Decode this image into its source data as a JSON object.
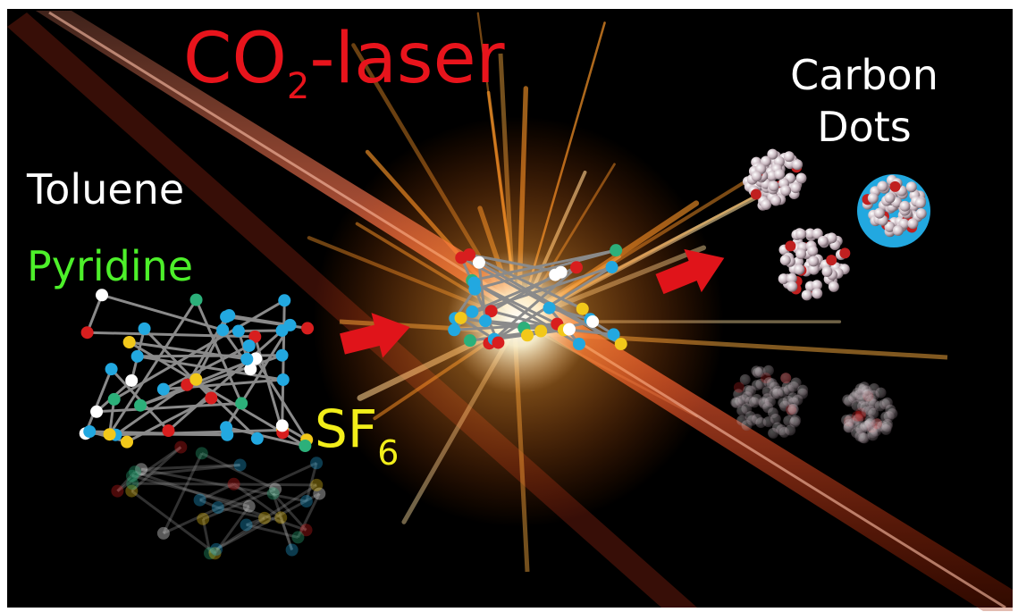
{
  "laser": {
    "main": "CO",
    "subscript": "2",
    "suffix": "-laser"
  },
  "product": [
    "Carbon",
    "Dots"
  ],
  "reagents": [
    "Toluene",
    "Pyridine"
  ],
  "gas": {
    "main": "SF",
    "subscript": "6"
  }
}
